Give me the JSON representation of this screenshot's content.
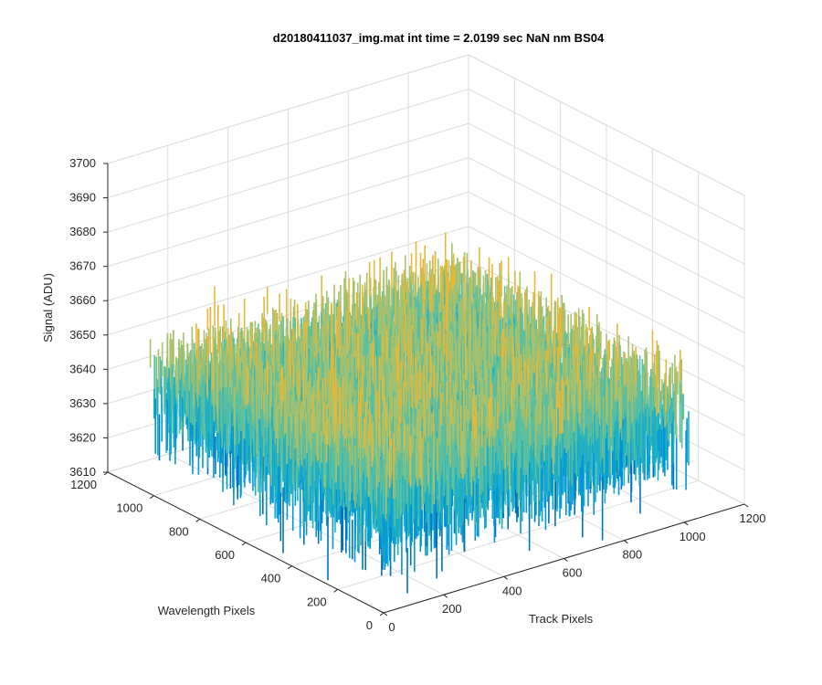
{
  "chart_data": {
    "type": "surface",
    "title": "d20180411037_img.mat int time = 2.0199 sec  NaN nm BS04",
    "xlabel": "Track Pixels",
    "ylabel": "Wavelength Pixels",
    "zlabel": "Signal (ADU)",
    "xlim": [
      0,
      1200
    ],
    "ylim": [
      0,
      1200
    ],
    "zlim": [
      3610,
      3700
    ],
    "x_ticks": [
      "0",
      "200",
      "400",
      "600",
      "800",
      "1000",
      "1200"
    ],
    "y_ticks": [
      "0",
      "200",
      "400",
      "600",
      "800",
      "1000",
      "1200"
    ],
    "z_ticks": [
      "3610",
      "3620",
      "3630",
      "3640",
      "3650",
      "3660",
      "3670",
      "3680",
      "3690",
      "3700"
    ],
    "data_extent": {
      "x": [
        0,
        1024
      ],
      "y": [
        0,
        1024
      ]
    },
    "signal_mean": 3646,
    "signal_range": [
      3605,
      3688
    ],
    "grid": true,
    "colormap": [
      "#0072bd",
      "#0097d6",
      "#1fb0c4",
      "#5bbfa0",
      "#a8c06a",
      "#e6b83a"
    ]
  }
}
